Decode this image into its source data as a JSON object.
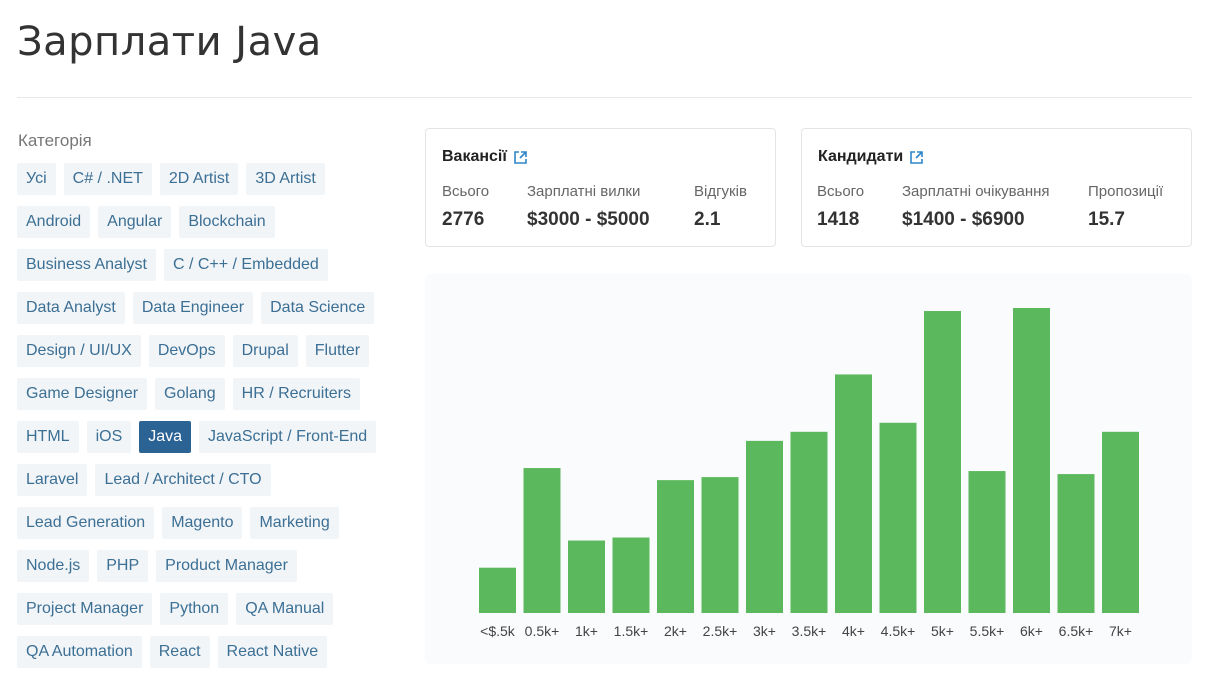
{
  "page": {
    "title": "Зарплати Java"
  },
  "categories": {
    "label": "Категорія",
    "items": [
      "Усі",
      "C# / .NET",
      "2D Artist",
      "3D Artist",
      "Android",
      "Angular",
      "Blockchain",
      "Business Analyst",
      "C / C++ / Embedded",
      "Data Analyst",
      "Data Engineer",
      "Data Science",
      "Design / UI/UX",
      "DevOps",
      "Drupal",
      "Flutter",
      "Game Designer",
      "Golang",
      "HR / Recruiters",
      "HTML",
      "iOS",
      "Java",
      "JavaScript / Front-End",
      "Laravel",
      "Lead / Architect / CTO",
      "Lead Generation",
      "Magento",
      "Marketing",
      "Node.js",
      "PHP",
      "Product Manager",
      "Project Manager",
      "Python",
      "QA Manual",
      "QA Automation",
      "React",
      "React Native"
    ],
    "active": "Java"
  },
  "vacancies": {
    "title": "Вакансії",
    "total_label": "Всього",
    "total_value": "2776",
    "range_label": "Зарплатні вилки",
    "range_value": "$3000 - $5000",
    "responses_label": "Відгуків",
    "responses_value": "2.1"
  },
  "candidates": {
    "title": "Кандидати",
    "total_label": "Всього",
    "total_value": "1418",
    "range_label": "Зарплатні очікування",
    "range_value": "$1400 - $6900",
    "offers_label": "Пропозиції",
    "offers_value": "15.7"
  },
  "colors": {
    "bar": "#5cb85c",
    "tag_bg": "#f1f5f8",
    "tag_text": "#3c6f94",
    "tag_active": "#2b6395"
  },
  "chart_data": {
    "type": "bar",
    "title": "",
    "xlabel": "",
    "ylabel": "",
    "categories": [
      "<$.5k",
      "0.5k+",
      "1k+",
      "1.5k+",
      "2k+",
      "2.5k+",
      "3k+",
      "3.5k+",
      "4k+",
      "4.5k+",
      "5k+",
      "5.5k+",
      "6k+",
      "6.5k+",
      "7k+"
    ],
    "values": [
      15,
      48,
      24,
      25,
      44,
      45,
      57,
      60,
      79,
      63,
      100,
      47,
      101,
      46,
      60
    ],
    "ylim": [
      0,
      101
    ],
    "grid": false,
    "legend": "none"
  }
}
